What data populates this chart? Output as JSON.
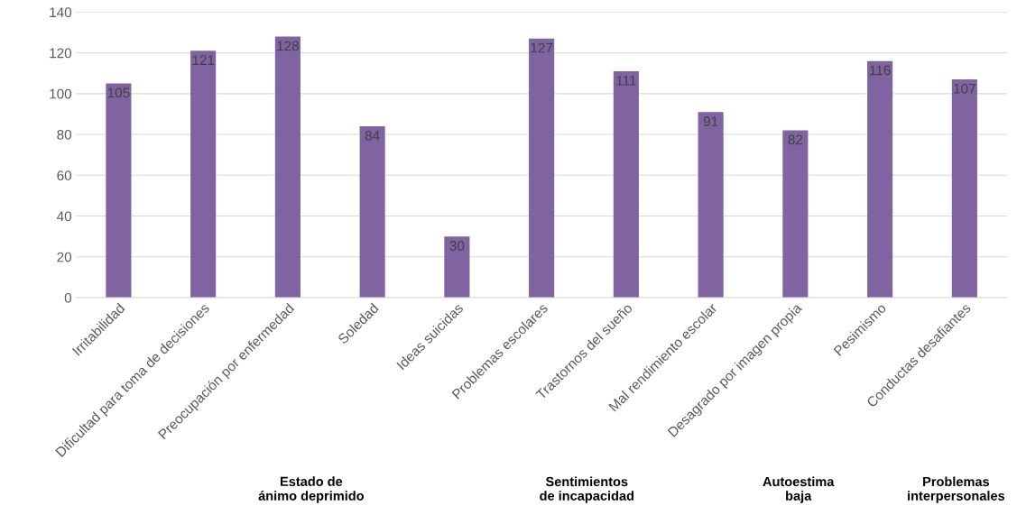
{
  "chart_data": {
    "type": "bar",
    "categories": [
      "Irritabilidad",
      "Dificultad para toma de decisiones",
      "Preocupación por enfermedad",
      "Soledad",
      "Ideas suicidas",
      "Problemas escolares",
      "Trastornos del sueño",
      "Mal rendimiento escolar",
      "Desagrado por imagen propia",
      "Pesimismo",
      "Conductas desafiantes"
    ],
    "values": [
      105,
      121,
      128,
      84,
      30,
      127,
      111,
      91,
      82,
      116,
      107
    ],
    "color": "#8064a2",
    "data_labels": true,
    "ylim": [
      0,
      140
    ],
    "yticks": [
      0,
      20,
      40,
      60,
      80,
      100,
      120,
      140
    ],
    "grid": "y",
    "annotations": [
      "Estado de ánimo deprimido",
      "Sentimientos de incapacidad",
      "Autoestima baja",
      "Problemas interpersonales"
    ]
  }
}
